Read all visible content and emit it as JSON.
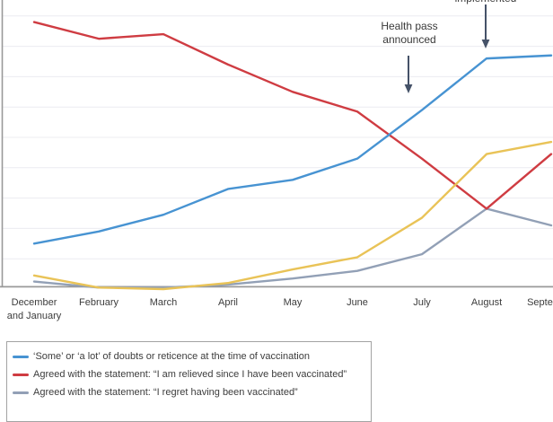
{
  "chart": {
    "annotations": {
      "announced": "Health pass\nannounced",
      "implemented": "implemented"
    }
  },
  "chart_data": {
    "type": "line",
    "title": "",
    "xlabel": "",
    "ylabel": "",
    "x_categories": [
      "December\nand January",
      "February",
      "March",
      "April",
      "May",
      "June",
      "July",
      "August",
      "September"
    ],
    "y_axis": {
      "min": 0,
      "max": 90,
      "grid_step": 10,
      "unit": "percent",
      "tick_labels_visible": false
    },
    "grid": "horizontal",
    "series": [
      {
        "name": "Agreed with the statement: “I regret having been vaccinated”",
        "color": "#92a0b6",
        "values": [
          2.5,
          0.5,
          0.5,
          1.5,
          3.5,
          6,
          11.5,
          26.5,
          21
        ]
      },
      {
        "name": "Agreed with the statement: “I am relieved since I have been vaccinated”",
        "color": "#cf3c42",
        "values": [
          88,
          82.5,
          84,
          74,
          65,
          58.5,
          43,
          26.5,
          44.5
        ]
      },
      {
        "name": "",
        "color": "#e9c357",
        "values": [
          4.5,
          0.5,
          0,
          2,
          6.5,
          10.5,
          23.5,
          44.5,
          48.5
        ]
      },
      {
        "name": "‘Some’ or ‘a lot’ of doubts or reticence at the time of vaccination",
        "color": "#4793d2",
        "values": [
          15,
          19,
          24.5,
          33,
          36,
          43,
          59,
          76,
          77
        ]
      }
    ],
    "annotations": [
      {
        "label": "Health pass announced",
        "points_at": "July"
      },
      {
        "label": "implemented",
        "points_at": "August",
        "note_clipped_at_top": true
      }
    ],
    "legend_position": "bottom-left-box"
  },
  "legend": {
    "items": [
      {
        "label": "‘Some’ or ‘a lot’ of doubts or reticence at the time of vaccination",
        "color": "#4793d2"
      },
      {
        "label": "Agreed with the statement: “I am relieved since I have been vaccinated”",
        "color": "#cf3c42"
      },
      {
        "label": "Agreed with the statement: “I regret having been vaccinated”",
        "color": "#92a0b6"
      }
    ]
  },
  "colors": {
    "blue_series": "#4793d2",
    "red_series": "#cf3c42",
    "yellow_series": "#e9c357",
    "gray_series": "#92a0b6",
    "arrow": "#455268",
    "axis": "#999999",
    "gridline": "#ececf1"
  }
}
